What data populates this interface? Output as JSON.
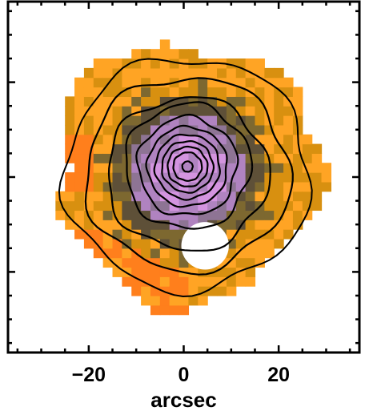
{
  "chart_data": {
    "type": "heatmap",
    "title": "",
    "xlabel": "arcsec",
    "ylabel": "",
    "xlim": [
      -37,
      37
    ],
    "ylim": [
      -37,
      37
    ],
    "x_ticks": [
      {
        "value": -20,
        "label": "−20"
      },
      {
        "value": 0,
        "label": "0"
      },
      {
        "value": 20,
        "label": "20"
      }
    ],
    "y_ticks": [
      -20,
      0,
      20
    ],
    "grid": false,
    "colormap": [
      "#ffffff",
      "#ff7f1c",
      "#ffa424",
      "#d89010",
      "#7d6830",
      "#5e5038",
      "#8e7494",
      "#b083c0",
      "#d494e0"
    ],
    "masked_region": {
      "center": [
        4.5,
        -14.5
      ],
      "radius": 5,
      "color": "#ffffff"
    },
    "contours": {
      "center": [
        0.8,
        2.2
      ],
      "color": "#000000",
      "radii_arcsec": [
        1.1,
        3.0,
        4.2,
        5.4,
        6.8,
        8.4,
        10.4,
        13.2,
        17.0,
        21.5,
        25.8
      ]
    }
  }
}
